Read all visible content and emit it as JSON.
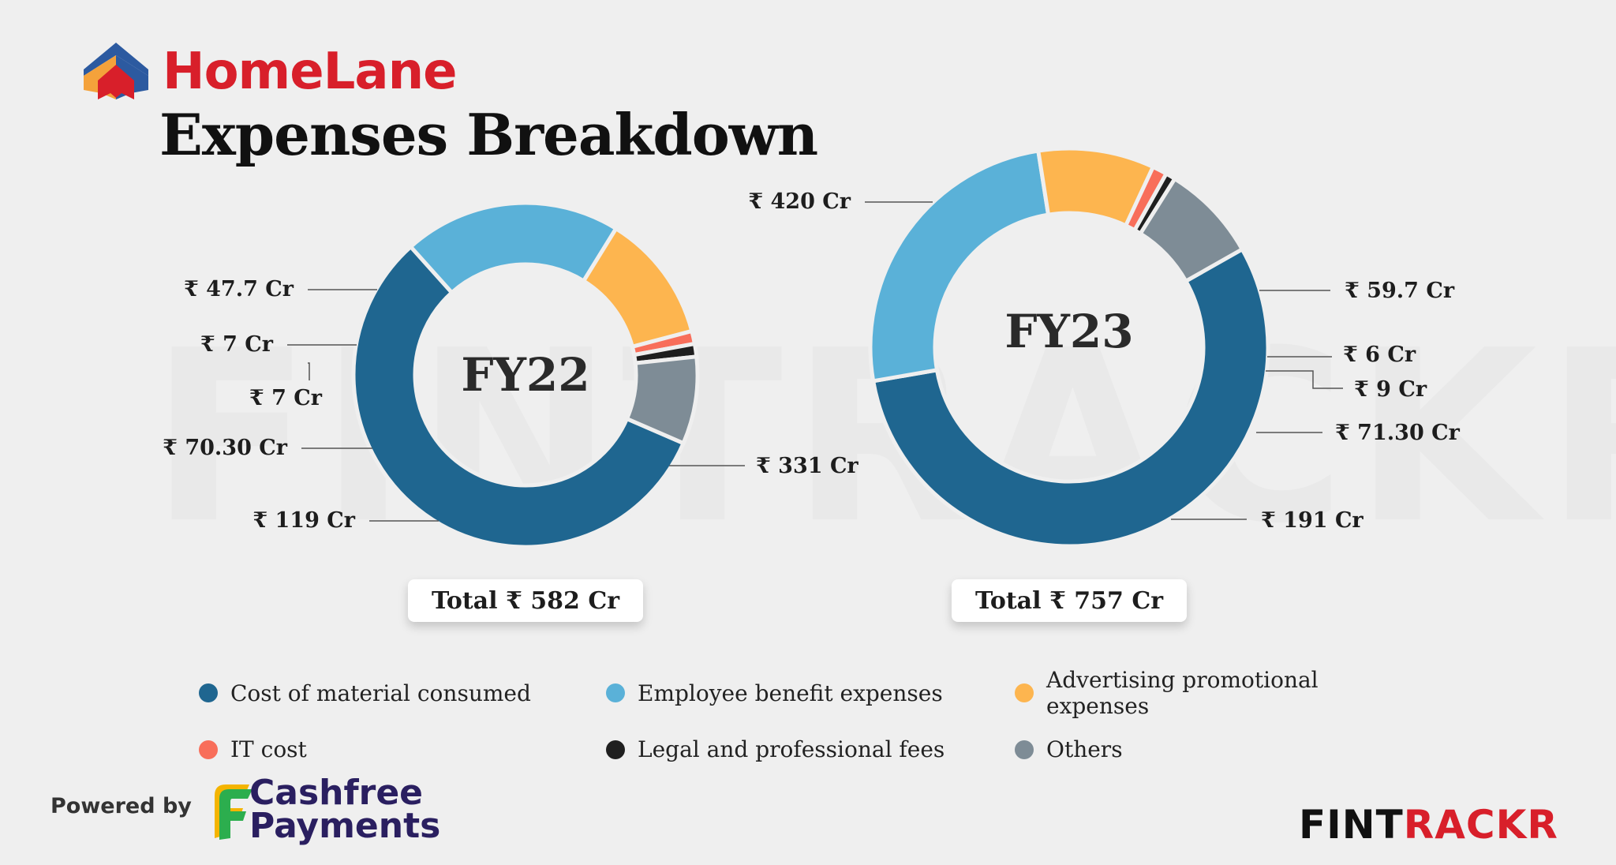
{
  "brand": {
    "name": "HomeLane"
  },
  "title": "Expenses Breakdown",
  "watermark": "FINTRACKR",
  "chart_data": {
    "type": "pie",
    "title": "Expenses Breakdown",
    "categories": [
      "Cost of material consumed",
      "Employee benefit expenses",
      "Advertising promotional expenses",
      "IT cost",
      "Legal and professional fees",
      "Others"
    ],
    "colors": [
      "#1f6690",
      "#5ab1d8",
      "#fdb54f",
      "#f86e5a",
      "#1f1f1f",
      "#7e8c96"
    ],
    "charts": [
      {
        "name": "FY22",
        "total_label": "Total ₹ 582 Cr",
        "values": [
          331,
          119,
          70.3,
          7,
          7,
          47.7
        ],
        "labels": [
          "₹ 331 Cr",
          "₹ 119 Cr",
          "₹ 70.30 Cr",
          "₹ 7 Cr",
          "₹ 7 Cr",
          "₹ 47.7 Cr"
        ]
      },
      {
        "name": "FY23",
        "total_label": "Total ₹ 757 Cr",
        "values": [
          420,
          191,
          71.3,
          9,
          6,
          59.7
        ],
        "labels": [
          "₹ 420 Cr",
          "₹ 191 Cr",
          "₹ 71.30 Cr",
          "₹ 9 Cr",
          "₹ 6 Cr",
          "₹ 59.7 Cr"
        ]
      }
    ]
  },
  "legend": [
    {
      "label": "Cost of material consumed",
      "color": "#1f6690"
    },
    {
      "label": "Employee benefit expenses",
      "color": "#5ab1d8"
    },
    {
      "label": "Advertising promotional expenses",
      "color": "#fdb54f"
    },
    {
      "label": "IT cost",
      "color": "#f86e5a"
    },
    {
      "label": "Legal and professional fees",
      "color": "#1f1f1f"
    },
    {
      "label": "Others",
      "color": "#7e8c96"
    }
  ],
  "footer": {
    "powered_by": "Powered by",
    "sponsor_line1": "Cashfree",
    "sponsor_line2": "Payments",
    "logo_part1": "FINT",
    "logo_part2": "RACKR"
  }
}
